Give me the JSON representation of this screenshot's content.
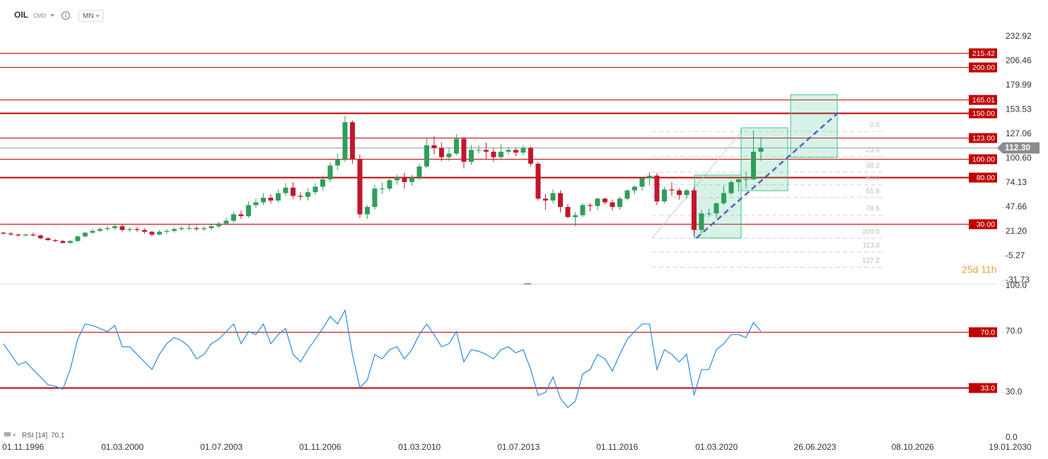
{
  "chart_data": [
    {
      "type": "candlestick",
      "title": "OIL",
      "subtitle": "CMD",
      "timeframe": "MN",
      "countdown": "25d 11h",
      "up_color": "#2e9e5b",
      "down_color": "#c0172d",
      "xlim": [
        1996.76,
        2032.04
      ],
      "ylim": [
        -31.73,
        232.92
      ],
      "yticks": [
        232.92,
        206.46,
        179.99,
        153.53,
        127.06,
        {
          "value": 100.6,
          "label": "100.60"
        },
        74.13,
        47.66,
        {
          "value": 21.2,
          "label": "21.20"
        },
        -5.27,
        -31.73
      ],
      "levels": [
        {
          "value": 215.42
        },
        {
          "value": 200,
          "label": "200.00"
        },
        {
          "value": 165.01
        },
        {
          "value": 150,
          "label": "150.00",
          "thick": true
        },
        {
          "value": 123,
          "label": "123.00"
        },
        {
          "value": 100,
          "label": "100.00"
        },
        {
          "value": 80,
          "label": "80.00",
          "thick": true
        },
        {
          "value": 30,
          "label": "30.00"
        }
      ],
      "level_color": "#c00000",
      "last_price": {
        "value": 112.3,
        "label": "112.30"
      },
      "fibonacci": [
        {
          "level": "0.0",
          "price": 130
        },
        {
          "level": "23.6",
          "price": 102.6
        },
        {
          "level": "38.2",
          "price": 85.7
        },
        {
          "level": "50.0",
          "price": 72
        },
        {
          "level": "61.8",
          "price": 58.3
        },
        {
          "level": "78.6",
          "price": 38.8
        },
        {
          "level": "100.0",
          "price": 14
        },
        {
          "level": "113.0",
          "price": -1.1
        },
        {
          "level": "127.2",
          "price": -17.6
        }
      ],
      "x": [
        1996.875,
        1997.125,
        1997.375,
        1997.625,
        1997.875,
        1998.125,
        1998.375,
        1998.625,
        1998.875,
        1999.125,
        1999.375,
        1999.625,
        1999.875,
        2000.125,
        2000.375,
        2000.625,
        2000.875,
        2001.125,
        2001.375,
        2001.625,
        2001.875,
        2002.125,
        2002.375,
        2002.625,
        2002.875,
        2003.125,
        2003.375,
        2003.625,
        2003.875,
        2004.125,
        2004.375,
        2004.625,
        2004.875,
        2005.125,
        2005.375,
        2005.625,
        2005.875,
        2006.125,
        2006.375,
        2006.625,
        2006.875,
        2007.125,
        2007.375,
        2007.625,
        2007.875,
        2008.125,
        2008.375,
        2008.625,
        2008.875,
        2009.125,
        2009.375,
        2009.625,
        2009.875,
        2010.125,
        2010.375,
        2010.625,
        2010.875,
        2011.125,
        2011.375,
        2011.625,
        2011.875,
        2012.125,
        2012.375,
        2012.625,
        2012.875,
        2013.125,
        2013.375,
        2013.625,
        2013.875,
        2014.125,
        2014.375,
        2014.625,
        2014.875,
        2015.125,
        2015.375,
        2015.625,
        2015.875,
        2016.125,
        2016.375,
        2016.625,
        2016.875,
        2017.125,
        2017.375,
        2017.625,
        2017.875,
        2018.125,
        2018.375,
        2018.625,
        2018.875,
        2019.125,
        2019.375,
        2019.625,
        2019.875,
        2020.125,
        2020.375,
        2020.625,
        2020.875,
        2021.125,
        2021.375,
        2021.625,
        2021.875,
        2022.125,
        2022.375
      ],
      "candles": [
        {
          "o": 20,
          "h": 21,
          "l": 18,
          "c": 19
        },
        {
          "o": 19,
          "h": 21,
          "l": 17,
          "c": 18
        },
        {
          "o": 18,
          "h": 19,
          "l": 16,
          "c": 17
        },
        {
          "o": 17,
          "h": 19,
          "l": 16,
          "c": 18
        },
        {
          "o": 18,
          "h": 20,
          "l": 16,
          "c": 17
        },
        {
          "o": 17,
          "h": 18,
          "l": 13,
          "c": 14
        },
        {
          "o": 14,
          "h": 15,
          "l": 11,
          "c": 12
        },
        {
          "o": 12,
          "h": 13,
          "l": 10,
          "c": 11
        },
        {
          "o": 11,
          "h": 12,
          "l": 8,
          "c": 9
        },
        {
          "o": 9,
          "h": 12,
          "l": 8,
          "c": 11
        },
        {
          "o": 11,
          "h": 17,
          "l": 10,
          "c": 16
        },
        {
          "o": 16,
          "h": 21,
          "l": 15,
          "c": 20
        },
        {
          "o": 20,
          "h": 24,
          "l": 19,
          "c": 22
        },
        {
          "o": 22,
          "h": 26,
          "l": 21,
          "c": 24
        },
        {
          "o": 24,
          "h": 27,
          "l": 22,
          "c": 25
        },
        {
          "o": 25,
          "h": 30,
          "l": 23,
          "c": 27
        },
        {
          "o": 27,
          "h": 29,
          "l": 21,
          "c": 23
        },
        {
          "o": 23,
          "h": 26,
          "l": 21,
          "c": 24
        },
        {
          "o": 24,
          "h": 26,
          "l": 21,
          "c": 23
        },
        {
          "o": 23,
          "h": 25,
          "l": 19,
          "c": 21
        },
        {
          "o": 21,
          "h": 22,
          "l": 16,
          "c": 18
        },
        {
          "o": 18,
          "h": 23,
          "l": 17,
          "c": 21
        },
        {
          "o": 21,
          "h": 24,
          "l": 19,
          "c": 22
        },
        {
          "o": 22,
          "h": 26,
          "l": 20,
          "c": 24
        },
        {
          "o": 24,
          "h": 27,
          "l": 22,
          "c": 25
        },
        {
          "o": 25,
          "h": 29,
          "l": 23,
          "c": 25
        },
        {
          "o": 25,
          "h": 27,
          "l": 22,
          "c": 24
        },
        {
          "o": 24,
          "h": 27,
          "l": 22,
          "c": 25
        },
        {
          "o": 25,
          "h": 29,
          "l": 23,
          "c": 27
        },
        {
          "o": 27,
          "h": 32,
          "l": 25,
          "c": 30
        },
        {
          "o": 30,
          "h": 36,
          "l": 28,
          "c": 33
        },
        {
          "o": 33,
          "h": 43,
          "l": 31,
          "c": 40
        },
        {
          "o": 40,
          "h": 44,
          "l": 35,
          "c": 38
        },
        {
          "o": 38,
          "h": 54,
          "l": 36,
          "c": 50
        },
        {
          "o": 50,
          "h": 57,
          "l": 47,
          "c": 53
        },
        {
          "o": 53,
          "h": 63,
          "l": 50,
          "c": 58
        },
        {
          "o": 58,
          "h": 62,
          "l": 52,
          "c": 55
        },
        {
          "o": 55,
          "h": 67,
          "l": 53,
          "c": 63
        },
        {
          "o": 63,
          "h": 74,
          "l": 60,
          "c": 69
        },
        {
          "o": 69,
          "h": 75,
          "l": 57,
          "c": 60
        },
        {
          "o": 60,
          "h": 64,
          "l": 55,
          "c": 59
        },
        {
          "o": 59,
          "h": 68,
          "l": 55,
          "c": 64
        },
        {
          "o": 64,
          "h": 74,
          "l": 61,
          "c": 70
        },
        {
          "o": 70,
          "h": 82,
          "l": 66,
          "c": 78
        },
        {
          "o": 78,
          "h": 96,
          "l": 75,
          "c": 93
        },
        {
          "o": 93,
          "h": 106,
          "l": 88,
          "c": 100
        },
        {
          "o": 100,
          "h": 147,
          "l": 97,
          "c": 140
        },
        {
          "o": 140,
          "h": 142,
          "l": 95,
          "c": 100
        },
        {
          "o": 100,
          "h": 105,
          "l": 36,
          "c": 40
        },
        {
          "o": 40,
          "h": 50,
          "l": 35,
          "c": 48
        },
        {
          "o": 48,
          "h": 72,
          "l": 45,
          "c": 68
        },
        {
          "o": 68,
          "h": 75,
          "l": 62,
          "c": 68
        },
        {
          "o": 68,
          "h": 80,
          "l": 65,
          "c": 77
        },
        {
          "o": 77,
          "h": 83,
          "l": 72,
          "c": 80
        },
        {
          "o": 80,
          "h": 85,
          "l": 68,
          "c": 75
        },
        {
          "o": 75,
          "h": 83,
          "l": 71,
          "c": 80
        },
        {
          "o": 80,
          "h": 95,
          "l": 77,
          "c": 92
        },
        {
          "o": 92,
          "h": 122,
          "l": 90,
          "c": 115
        },
        {
          "o": 115,
          "h": 125,
          "l": 105,
          "c": 112
        },
        {
          "o": 112,
          "h": 118,
          "l": 98,
          "c": 102
        },
        {
          "o": 102,
          "h": 112,
          "l": 98,
          "c": 106
        },
        {
          "o": 106,
          "h": 127,
          "l": 104,
          "c": 122
        },
        {
          "o": 122,
          "h": 124,
          "l": 90,
          "c": 97
        },
        {
          "o": 97,
          "h": 115,
          "l": 94,
          "c": 110
        },
        {
          "o": 110,
          "h": 115,
          "l": 106,
          "c": 110
        },
        {
          "o": 110,
          "h": 118,
          "l": 100,
          "c": 108
        },
        {
          "o": 108,
          "h": 112,
          "l": 97,
          "c": 102
        },
        {
          "o": 102,
          "h": 116,
          "l": 100,
          "c": 108
        },
        {
          "o": 108,
          "h": 113,
          "l": 105,
          "c": 110
        },
        {
          "o": 110,
          "h": 112,
          "l": 103,
          "c": 107
        },
        {
          "o": 107,
          "h": 115,
          "l": 104,
          "c": 112
        },
        {
          "o": 112,
          "h": 114,
          "l": 92,
          "c": 95
        },
        {
          "o": 95,
          "h": 97,
          "l": 55,
          "c": 57
        },
        {
          "o": 57,
          "h": 62,
          "l": 45,
          "c": 55
        },
        {
          "o": 55,
          "h": 67,
          "l": 52,
          "c": 63
        },
        {
          "o": 63,
          "h": 66,
          "l": 42,
          "c": 48
        },
        {
          "o": 48,
          "h": 51,
          "l": 36,
          "c": 37
        },
        {
          "o": 37,
          "h": 42,
          "l": 27,
          "c": 39
        },
        {
          "o": 39,
          "h": 52,
          "l": 37,
          "c": 50
        },
        {
          "o": 50,
          "h": 52,
          "l": 43,
          "c": 49
        },
        {
          "o": 49,
          "h": 58,
          "l": 45,
          "c": 57
        },
        {
          "o": 57,
          "h": 58,
          "l": 51,
          "c": 53
        },
        {
          "o": 53,
          "h": 56,
          "l": 44,
          "c": 48
        },
        {
          "o": 48,
          "h": 59,
          "l": 45,
          "c": 57
        },
        {
          "o": 57,
          "h": 67,
          "l": 55,
          "c": 66
        },
        {
          "o": 66,
          "h": 71,
          "l": 62,
          "c": 70
        },
        {
          "o": 70,
          "h": 80,
          "l": 66,
          "c": 79
        },
        {
          "o": 79,
          "h": 86,
          "l": 71,
          "c": 82
        },
        {
          "o": 82,
          "h": 85,
          "l": 50,
          "c": 54
        },
        {
          "o": 54,
          "h": 70,
          "l": 52,
          "c": 67
        },
        {
          "o": 67,
          "h": 75,
          "l": 60,
          "c": 66
        },
        {
          "o": 66,
          "h": 68,
          "l": 56,
          "c": 61
        },
        {
          "o": 61,
          "h": 68,
          "l": 57,
          "c": 66
        },
        {
          "o": 66,
          "h": 69,
          "l": 16,
          "c": 23
        },
        {
          "o": 23,
          "h": 45,
          "l": 19,
          "c": 41
        },
        {
          "o": 41,
          "h": 46,
          "l": 37,
          "c": 41
        },
        {
          "o": 41,
          "h": 53,
          "l": 36,
          "c": 52
        },
        {
          "o": 52,
          "h": 71,
          "l": 50,
          "c": 63
        },
        {
          "o": 63,
          "h": 77,
          "l": 61,
          "c": 75
        },
        {
          "o": 75,
          "h": 80,
          "l": 65,
          "c": 78
        },
        {
          "o": 78,
          "h": 86,
          "l": 68,
          "c": 78
        },
        {
          "o": 78,
          "h": 131,
          "l": 77,
          "c": 108
        },
        {
          "o": 108,
          "h": 124,
          "l": 98,
          "c": 112
        }
      ]
    },
    {
      "type": "line",
      "name": "RSI [14]",
      "color": "#2a8be0",
      "xlim": [
        1996.76,
        2032.04
      ],
      "ylim": [
        0,
        100
      ],
      "yticks": [
        {
          "value": 100,
          "label": "100.0"
        },
        {
          "value": 70,
          "label": "70.0"
        },
        {
          "value": 30,
          "label": "30.0"
        },
        {
          "value": 0,
          "label": "0.0"
        }
      ],
      "levels": [
        {
          "value": 70,
          "label": "70.0"
        },
        {
          "value": 33,
          "label": "33.0",
          "thick": true
        }
      ],
      "level_color": "#c00000",
      "xticks": [
        {
          "value": 1996.833,
          "label": "01.11.1996"
        },
        {
          "value": 2000.167,
          "label": "01.03.2000"
        },
        {
          "value": 2003.5,
          "label": "01.07.2003"
        },
        {
          "value": 2006.833,
          "label": "01.11.2006"
        },
        {
          "value": 2010.167,
          "label": "01.03.2010"
        },
        {
          "value": 2013.5,
          "label": "01.07.2013"
        },
        {
          "value": 2016.833,
          "label": "01.11.2016"
        },
        {
          "value": 2020.167,
          "label": "01.03.2020"
        },
        {
          "value": 2023.48,
          "label": "26.06.2023"
        },
        {
          "value": 2026.77,
          "label": "08.10.2026"
        },
        {
          "value": 2030.05,
          "label": "19.01.2030"
        }
      ],
      "x": [
        1996.875,
        1997.125,
        1997.375,
        1997.625,
        1997.875,
        1998.125,
        1998.375,
        1998.625,
        1998.875,
        1999.125,
        1999.375,
        1999.625,
        1999.875,
        2000.125,
        2000.375,
        2000.625,
        2000.875,
        2001.125,
        2001.375,
        2001.625,
        2001.875,
        2002.125,
        2002.375,
        2002.625,
        2002.875,
        2003.125,
        2003.375,
        2003.625,
        2003.875,
        2004.125,
        2004.375,
        2004.625,
        2004.875,
        2005.125,
        2005.375,
        2005.625,
        2005.875,
        2006.125,
        2006.375,
        2006.625,
        2006.875,
        2007.125,
        2007.375,
        2007.625,
        2007.875,
        2008.125,
        2008.375,
        2008.625,
        2008.875,
        2009.125,
        2009.375,
        2009.625,
        2009.875,
        2010.125,
        2010.375,
        2010.625,
        2010.875,
        2011.125,
        2011.375,
        2011.625,
        2011.875,
        2012.125,
        2012.375,
        2012.625,
        2012.875,
        2013.125,
        2013.375,
        2013.625,
        2013.875,
        2014.125,
        2014.375,
        2014.625,
        2014.875,
        2015.125,
        2015.375,
        2015.625,
        2015.875,
        2016.125,
        2016.375,
        2016.625,
        2016.875,
        2017.125,
        2017.375,
        2017.625,
        2017.875,
        2018.125,
        2018.375,
        2018.625,
        2018.875,
        2019.125,
        2019.375,
        2019.625,
        2019.875,
        2020.125,
        2020.375,
        2020.625,
        2020.875,
        2021.125,
        2021.375,
        2021.625,
        2021.875,
        2022.125,
        2022.375
      ],
      "values": [
        62,
        55,
        48,
        50,
        45,
        40,
        35,
        34,
        32,
        45,
        65,
        75,
        74,
        72,
        70,
        74,
        60,
        60,
        55,
        50,
        45,
        55,
        62,
        66,
        64,
        60,
        52,
        55,
        62,
        65,
        70,
        75,
        62,
        70,
        68,
        75,
        62,
        68,
        72,
        55,
        50,
        58,
        65,
        72,
        80,
        75,
        84,
        55,
        33,
        38,
        55,
        52,
        58,
        60,
        52,
        58,
        68,
        75,
        68,
        60,
        62,
        70,
        50,
        58,
        57,
        55,
        52,
        58,
        60,
        56,
        58,
        45,
        28,
        30,
        40,
        26,
        20,
        24,
        42,
        45,
        55,
        52,
        44,
        55,
        65,
        70,
        75,
        75,
        45,
        58,
        55,
        50,
        55,
        28,
        45,
        45,
        58,
        62,
        68,
        68,
        66,
        76,
        70.1
      ]
    }
  ]
}
